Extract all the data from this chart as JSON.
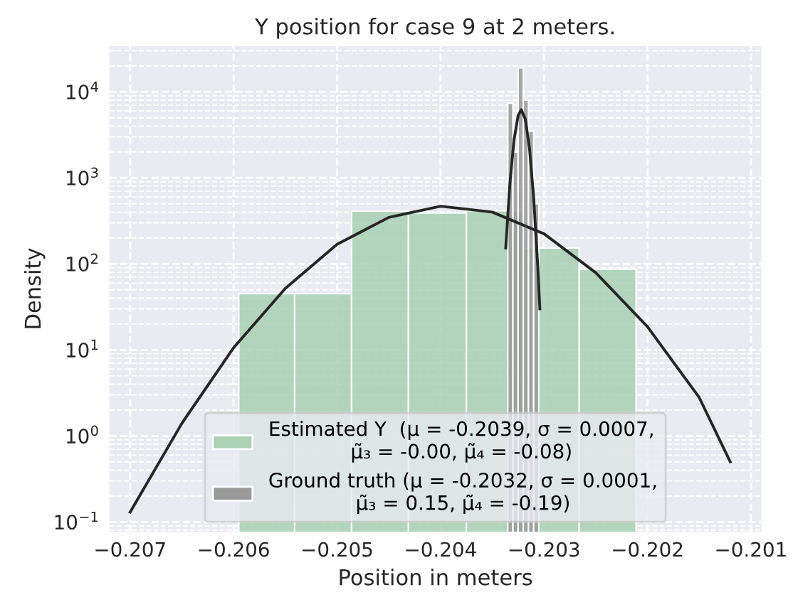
{
  "chart_data": {
    "type": "histogram",
    "title": "Y position for case 9 at 2 meters.",
    "xlabel": "Position in meters",
    "ylabel": "Density",
    "series": [
      {
        "name": "Estimated Y  (μ = -0.2039, σ = 0.0007,\nμ̃₃ = -0.00, μ̃₄ = -0.08)",
        "color": "#a9d1b4",
        "bins": [
          -0.20595,
          -0.20541,
          -0.20486,
          -0.20431,
          -0.20375,
          -0.2032,
          -0.20266,
          -0.20211
        ],
        "values": [
          45,
          45,
          411,
          390,
          415,
          153,
          87
        ]
      },
      {
        "name": "Ground truth (μ = -0.2032, σ = 0.0001,\nμ̃₃ = 0.15, μ̃₄ = -0.19)",
        "color": "#999999",
        "bins": [
          -0.20335,
          -0.2033,
          -0.20325,
          -0.2032,
          -0.20315,
          -0.2031,
          -0.20305
        ],
        "values": [
          7400,
          2000,
          19000,
          8000,
          3500,
          500
        ]
      },
      {
        "type": "line",
        "color": "#262626",
        "x": [
          -0.207,
          -0.2065,
          -0.206,
          -0.2055,
          -0.205,
          -0.2045,
          -0.204,
          -0.2035,
          -0.203,
          -0.2025,
          -0.202,
          -0.2015,
          -0.2012
        ],
        "values": [
          0.13,
          1.4,
          10.6,
          52,
          169,
          347,
          468,
          400,
          224,
          79,
          18.6,
          2.8,
          0.5
        ]
      },
      {
        "type": "line",
        "color": "#262626",
        "x": [
          -0.20337,
          -0.20333,
          -0.20329,
          -0.20325,
          -0.20322,
          -0.20318,
          -0.20314,
          -0.2031,
          -0.20306,
          -0.20304
        ],
        "values": [
          153,
          850,
          2750,
          5300,
          6200,
          4800,
          2200,
          590,
          93,
          30
        ]
      }
    ],
    "log": "y",
    "xlim": [
      -0.2072,
      -0.2009
    ],
    "ylim": [
      0.077,
      34000
    ],
    "xticks": [
      {
        "value": -0.207,
        "label": "−0.207"
      },
      {
        "value": -0.206,
        "label": "−0.206"
      },
      {
        "value": -0.205,
        "label": "−0.205"
      },
      {
        "value": -0.204,
        "label": "−0.204"
      },
      {
        "value": -0.203,
        "label": "−0.203"
      },
      {
        "value": -0.202,
        "label": "−0.202"
      },
      {
        "value": -0.201,
        "label": "−0.201"
      }
    ],
    "yticks": [
      {
        "value": 0.1,
        "label": "10$^{−1}$"
      },
      {
        "value": 1,
        "label": "10$^{0}$"
      },
      {
        "value": 10,
        "label": "10$^{1}$"
      },
      {
        "value": 100,
        "label": "10$^{2}$"
      },
      {
        "value": 1000,
        "label": "10$^{3}$"
      },
      {
        "value": 10000,
        "label": "10$^{4}$"
      }
    ],
    "grid": true,
    "legend": "bottom"
  }
}
